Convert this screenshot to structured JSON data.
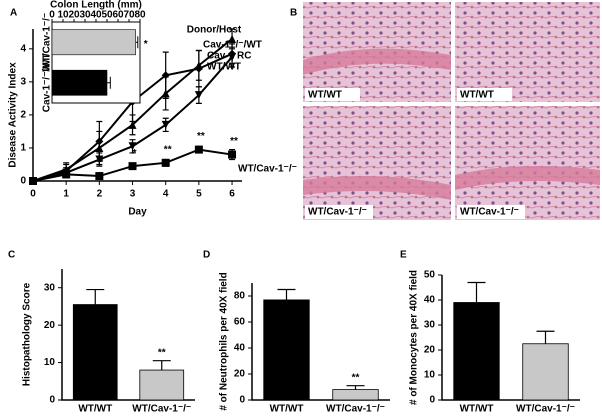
{
  "chart_data": [
    {
      "type": "line",
      "panel_label": "A",
      "xlabel": "Day",
      "ylabel": "Disease Activity Index",
      "legend_title": "Donor/Host",
      "x": [
        0,
        1,
        2,
        3,
        4,
        5,
        6
      ],
      "xlim": [
        0,
        6.3
      ],
      "xticks": [
        0,
        1,
        2,
        3,
        4,
        5,
        6
      ],
      "ylim": [
        0,
        4.6
      ],
      "yticks": [
        0,
        1,
        2,
        3,
        4
      ],
      "series": [
        {
          "name": "Cav-1⁻/⁻/WT",
          "marker": "triangle-up",
          "color": "#000",
          "values": [
            0,
            0.35,
            1.0,
            1.7,
            2.65,
            3.5,
            4.3
          ],
          "errors": [
            0,
            0.2,
            0.5,
            0.3,
            0.5,
            0.45,
            0.3
          ]
        },
        {
          "name": "Cav-1 RC",
          "marker": "diamond",
          "color": "#000",
          "values": [
            0,
            0.3,
            1.2,
            2.4,
            3.2,
            3.4,
            3.85
          ],
          "errors": [
            0,
            0.2,
            0.6,
            0.6,
            0.7,
            0.55,
            0.3
          ]
        },
        {
          "name": "WT/WT",
          "marker": "triangle-down",
          "color": "#000",
          "values": [
            0,
            0.25,
            0.65,
            1.05,
            1.7,
            2.6,
            3.75
          ],
          "errors": [
            0,
            0.15,
            0.2,
            0.2,
            0.2,
            0.25,
            0.3
          ]
        },
        {
          "name": "WT/Cav-1⁻/⁻",
          "marker": "square",
          "color": "#000",
          "values": [
            0,
            0.2,
            0.15,
            0.45,
            0.55,
            0.95,
            0.8
          ],
          "errors": [
            0,
            0.1,
            0.05,
            0.05,
            0.1,
            0.1,
            0.15
          ],
          "significance": [
            null,
            null,
            "*",
            "*",
            "**",
            "**",
            "**"
          ]
        }
      ]
    },
    {
      "type": "bar",
      "orientation": "horizontal",
      "xlabel": "Colon Length (mm)",
      "xlim": [
        0,
        80
      ],
      "xticks": [
        0,
        10,
        20,
        30,
        40,
        50,
        60,
        70,
        80
      ],
      "categories": [
        "WT/Cav-1⁻/⁻",
        "Cav-1⁻/⁻/WT"
      ],
      "values": [
        76,
        50
      ],
      "errors": [
        2,
        3
      ],
      "colors": [
        "#c8c8c8",
        "#000"
      ],
      "significance": [
        "*",
        null
      ]
    },
    {
      "type": "bar",
      "panel_label": "C",
      "ylabel": "Histopathology Score",
      "categories": [
        "WT/WT",
        "WT/Cav-1⁻/⁻"
      ],
      "values": [
        25.5,
        8
      ],
      "errors": [
        4,
        2.5
      ],
      "colors": [
        "#000",
        "#c8c8c8"
      ],
      "ylim": [
        0,
        35
      ],
      "yticks": [
        0,
        10,
        20,
        30
      ],
      "significance": [
        null,
        "**"
      ]
    },
    {
      "type": "bar",
      "panel_label": "D",
      "ylabel": "# of Neutrophils per 40X field",
      "categories": [
        "WT/WT",
        "WT/Cav-1⁻/⁻"
      ],
      "values": [
        77,
        8
      ],
      "errors": [
        8,
        3
      ],
      "colors": [
        "#000",
        "#c8c8c8"
      ],
      "ylim": [
        0,
        90
      ],
      "yticks": [
        0,
        20,
        40,
        60,
        80
      ],
      "significance": [
        null,
        "**"
      ]
    },
    {
      "type": "bar",
      "panel_label": "E",
      "ylabel": "# of Monocytes per 40X field",
      "categories": [
        "WT/WT",
        "WT/Cav-1⁻/⁻"
      ],
      "values": [
        39,
        22.5
      ],
      "errors": [
        8,
        5
      ],
      "colors": [
        "#000",
        "#c8c8c8"
      ],
      "ylim": [
        0,
        50
      ],
      "yticks": [
        0,
        10,
        20,
        30,
        40,
        50
      ],
      "significance": null
    }
  ],
  "panel_b": {
    "panel_label": "B",
    "labels": [
      "WT/WT",
      "WT/WT",
      "WT/Cav-1⁻/⁻",
      "WT/Cav-1⁻/⁻"
    ]
  }
}
